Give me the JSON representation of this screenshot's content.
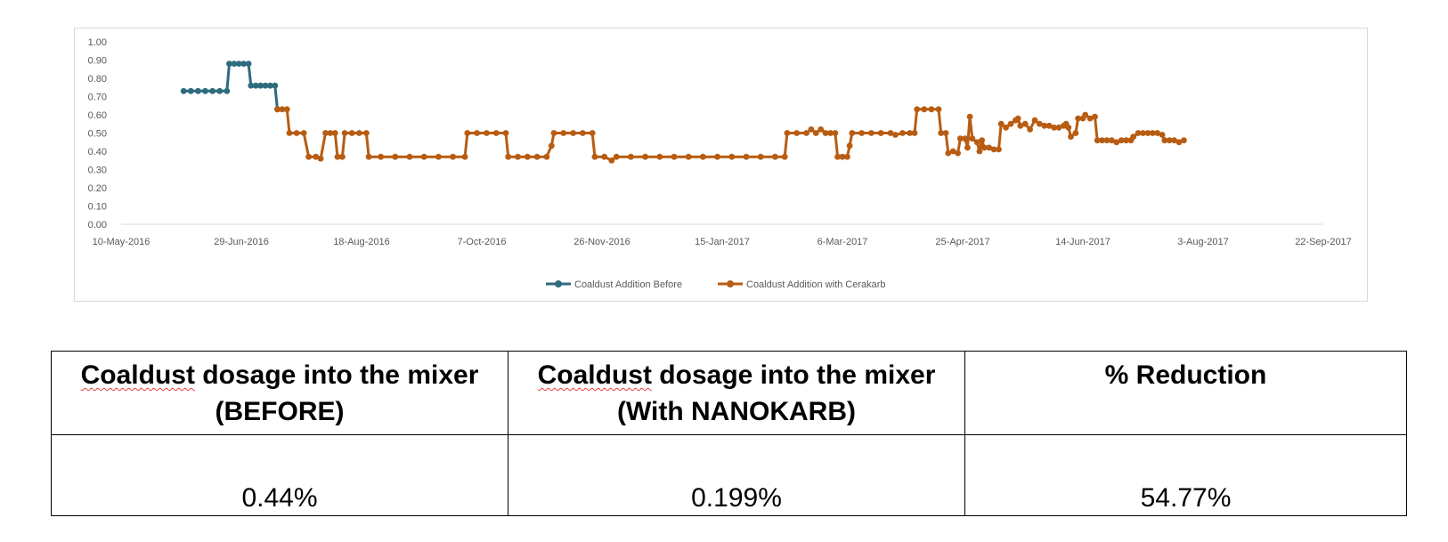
{
  "chart_data": {
    "type": "line",
    "title": "",
    "xlabel": "",
    "ylabel": "",
    "x_axis": {
      "min": "2016-05-10",
      "max": "2017-09-22",
      "tick_labels": [
        "10-May-2016",
        "29-Jun-2016",
        "18-Aug-2016",
        "7-Oct-2016",
        "26-Nov-2016",
        "15-Jan-2017",
        "6-Mar-2017",
        "25-Apr-2017",
        "14-Jun-2017",
        "3-Aug-2017",
        "22-Sep-2017"
      ]
    },
    "y_axis": {
      "min": 0,
      "max": 1,
      "tick_labels": [
        "0.00",
        "0.10",
        "0.20",
        "0.30",
        "0.40",
        "0.50",
        "0.60",
        "0.70",
        "0.80",
        "0.90",
        "1.00"
      ]
    },
    "grid": false,
    "legend_position": "bottom",
    "series": [
      {
        "name": "Coaldust Addition  Before",
        "color": "#2e6b7e",
        "points": [
          [
            "2016-06-05",
            0.73
          ],
          [
            "2016-06-08",
            0.73
          ],
          [
            "2016-06-11",
            0.73
          ],
          [
            "2016-06-14",
            0.73
          ],
          [
            "2016-06-17",
            0.73
          ],
          [
            "2016-06-20",
            0.73
          ],
          [
            "2016-06-23",
            0.73
          ],
          [
            "2016-06-24",
            0.88
          ],
          [
            "2016-06-26",
            0.88
          ],
          [
            "2016-06-28",
            0.88
          ],
          [
            "2016-06-30",
            0.88
          ],
          [
            "2016-07-02",
            0.88
          ],
          [
            "2016-07-03",
            0.76
          ],
          [
            "2016-07-05",
            0.76
          ],
          [
            "2016-07-07",
            0.76
          ],
          [
            "2016-07-09",
            0.76
          ],
          [
            "2016-07-11",
            0.76
          ],
          [
            "2016-07-13",
            0.76
          ],
          [
            "2016-07-14",
            0.63
          ]
        ]
      },
      {
        "name": "Coaldust Addition with Cerakarb",
        "color": "#b85c12",
        "points": [
          [
            "2016-07-14",
            0.63
          ],
          [
            "2016-07-16",
            0.63
          ],
          [
            "2016-07-18",
            0.63
          ],
          [
            "2016-07-19",
            0.5
          ],
          [
            "2016-07-22",
            0.5
          ],
          [
            "2016-07-25",
            0.5
          ],
          [
            "2016-07-27",
            0.37
          ],
          [
            "2016-07-30",
            0.37
          ],
          [
            "2016-08-01",
            0.36
          ],
          [
            "2016-08-03",
            0.5
          ],
          [
            "2016-08-05",
            0.5
          ],
          [
            "2016-08-07",
            0.5
          ],
          [
            "2016-08-08",
            0.37
          ],
          [
            "2016-08-10",
            0.37
          ],
          [
            "2016-08-11",
            0.5
          ],
          [
            "2016-08-14",
            0.5
          ],
          [
            "2016-08-17",
            0.5
          ],
          [
            "2016-08-20",
            0.5
          ],
          [
            "2016-08-21",
            0.37
          ],
          [
            "2016-08-26",
            0.37
          ],
          [
            "2016-09-01",
            0.37
          ],
          [
            "2016-09-07",
            0.37
          ],
          [
            "2016-09-13",
            0.37
          ],
          [
            "2016-09-19",
            0.37
          ],
          [
            "2016-09-25",
            0.37
          ],
          [
            "2016-09-30",
            0.37
          ],
          [
            "2016-10-01",
            0.5
          ],
          [
            "2016-10-05",
            0.5
          ],
          [
            "2016-10-09",
            0.5
          ],
          [
            "2016-10-13",
            0.5
          ],
          [
            "2016-10-17",
            0.5
          ],
          [
            "2016-10-18",
            0.37
          ],
          [
            "2016-10-22",
            0.37
          ],
          [
            "2016-10-26",
            0.37
          ],
          [
            "2016-10-30",
            0.37
          ],
          [
            "2016-11-03",
            0.37
          ],
          [
            "2016-11-05",
            0.43
          ],
          [
            "2016-11-06",
            0.5
          ],
          [
            "2016-11-10",
            0.5
          ],
          [
            "2016-11-14",
            0.5
          ],
          [
            "2016-11-18",
            0.5
          ],
          [
            "2016-11-22",
            0.5
          ],
          [
            "2016-11-23",
            0.37
          ],
          [
            "2016-11-27",
            0.37
          ],
          [
            "2016-11-30",
            0.35
          ],
          [
            "2016-12-02",
            0.37
          ],
          [
            "2016-12-08",
            0.37
          ],
          [
            "2016-12-14",
            0.37
          ],
          [
            "2016-12-20",
            0.37
          ],
          [
            "2016-12-26",
            0.37
          ],
          [
            "2017-01-01",
            0.37
          ],
          [
            "2017-01-07",
            0.37
          ],
          [
            "2017-01-13",
            0.37
          ],
          [
            "2017-01-19",
            0.37
          ],
          [
            "2017-01-25",
            0.37
          ],
          [
            "2017-01-31",
            0.37
          ],
          [
            "2017-02-06",
            0.37
          ],
          [
            "2017-02-10",
            0.37
          ],
          [
            "2017-02-11",
            0.5
          ],
          [
            "2017-02-15",
            0.5
          ],
          [
            "2017-02-19",
            0.5
          ],
          [
            "2017-02-21",
            0.52
          ],
          [
            "2017-02-23",
            0.5
          ],
          [
            "2017-02-25",
            0.52
          ],
          [
            "2017-02-27",
            0.5
          ],
          [
            "2017-03-01",
            0.5
          ],
          [
            "2017-03-03",
            0.5
          ],
          [
            "2017-03-04",
            0.37
          ],
          [
            "2017-03-06",
            0.37
          ],
          [
            "2017-03-08",
            0.37
          ],
          [
            "2017-03-09",
            0.43
          ],
          [
            "2017-03-10",
            0.5
          ],
          [
            "2017-03-14",
            0.5
          ],
          [
            "2017-03-18",
            0.5
          ],
          [
            "2017-03-22",
            0.5
          ],
          [
            "2017-03-26",
            0.5
          ],
          [
            "2017-03-28",
            0.49
          ],
          [
            "2017-03-31",
            0.5
          ],
          [
            "2017-04-03",
            0.5
          ],
          [
            "2017-04-05",
            0.5
          ],
          [
            "2017-04-06",
            0.63
          ],
          [
            "2017-04-09",
            0.63
          ],
          [
            "2017-04-12",
            0.63
          ],
          [
            "2017-04-15",
            0.63
          ],
          [
            "2017-04-16",
            0.5
          ],
          [
            "2017-04-18",
            0.5
          ],
          [
            "2017-04-19",
            0.39
          ],
          [
            "2017-04-21",
            0.4
          ],
          [
            "2017-04-23",
            0.39
          ],
          [
            "2017-04-24",
            0.47
          ],
          [
            "2017-04-26",
            0.47
          ],
          [
            "2017-04-27",
            0.42
          ],
          [
            "2017-04-28",
            0.59
          ],
          [
            "2017-04-29",
            0.47
          ],
          [
            "2017-05-01",
            0.45
          ],
          [
            "2017-05-02",
            0.4
          ],
          [
            "2017-05-03",
            0.46
          ],
          [
            "2017-05-04",
            0.42
          ],
          [
            "2017-05-06",
            0.42
          ],
          [
            "2017-05-08",
            0.41
          ],
          [
            "2017-05-10",
            0.41
          ],
          [
            "2017-05-11",
            0.55
          ],
          [
            "2017-05-13",
            0.53
          ],
          [
            "2017-05-15",
            0.55
          ],
          [
            "2017-05-17",
            0.57
          ],
          [
            "2017-05-18",
            0.58
          ],
          [
            "2017-05-19",
            0.54
          ],
          [
            "2017-05-21",
            0.55
          ],
          [
            "2017-05-23",
            0.52
          ],
          [
            "2017-05-25",
            0.57
          ],
          [
            "2017-05-27",
            0.55
          ],
          [
            "2017-05-29",
            0.54
          ],
          [
            "2017-05-31",
            0.54
          ],
          [
            "2017-06-02",
            0.53
          ],
          [
            "2017-06-04",
            0.53
          ],
          [
            "2017-06-06",
            0.54
          ],
          [
            "2017-06-07",
            0.55
          ],
          [
            "2017-06-08",
            0.53
          ],
          [
            "2017-06-09",
            0.48
          ],
          [
            "2017-06-11",
            0.5
          ],
          [
            "2017-06-12",
            0.58
          ],
          [
            "2017-06-14",
            0.58
          ],
          [
            "2017-06-15",
            0.6
          ],
          [
            "2017-06-17",
            0.58
          ],
          [
            "2017-06-19",
            0.59
          ],
          [
            "2017-06-20",
            0.46
          ],
          [
            "2017-06-22",
            0.46
          ],
          [
            "2017-06-24",
            0.46
          ],
          [
            "2017-06-26",
            0.46
          ],
          [
            "2017-06-28",
            0.45
          ],
          [
            "2017-06-30",
            0.46
          ],
          [
            "2017-07-02",
            0.46
          ],
          [
            "2017-07-04",
            0.46
          ],
          [
            "2017-07-05",
            0.48
          ],
          [
            "2017-07-07",
            0.5
          ],
          [
            "2017-07-09",
            0.5
          ],
          [
            "2017-07-11",
            0.5
          ],
          [
            "2017-07-13",
            0.5
          ],
          [
            "2017-07-15",
            0.5
          ],
          [
            "2017-07-17",
            0.49
          ],
          [
            "2017-07-18",
            0.46
          ],
          [
            "2017-07-20",
            0.46
          ],
          [
            "2017-07-22",
            0.46
          ],
          [
            "2017-07-24",
            0.45
          ],
          [
            "2017-07-26",
            0.46
          ]
        ]
      }
    ]
  },
  "table": {
    "headers": [
      {
        "word": "Coaldust",
        "rest": " dosage into the mixer",
        "line2": "(BEFORE)"
      },
      {
        "word": "Coaldust",
        "rest": " dosage into the mixer",
        "line2": "(With NANOKARB)"
      },
      {
        "word": "",
        "rest": "% Reduction",
        "line2": ""
      }
    ],
    "values": [
      "0.44%",
      "0.199%",
      "54.77%"
    ]
  }
}
